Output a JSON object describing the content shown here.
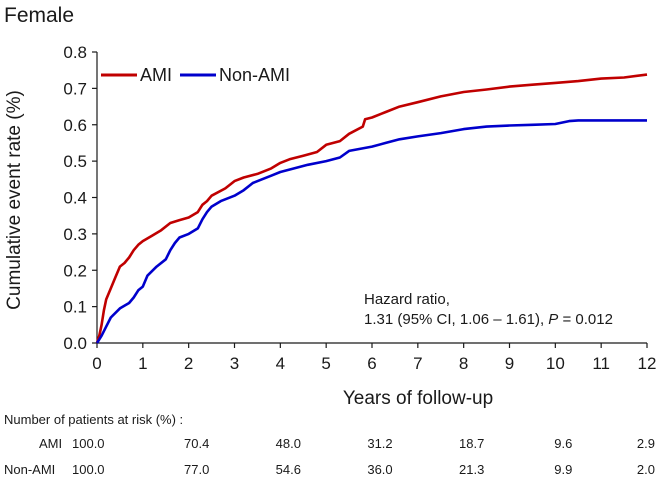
{
  "chart_data": {
    "type": "line",
    "title": "Female",
    "xlabel": "Years of follow-up",
    "ylabel": "Cumulative event rate (%)",
    "xlim": [
      0,
      12
    ],
    "ylim": [
      0,
      0.8
    ],
    "x_ticks": [
      0,
      1,
      2,
      3,
      4,
      5,
      6,
      7,
      8,
      9,
      10,
      11,
      12
    ],
    "y_ticks": [
      0.0,
      0.1,
      0.2,
      0.3,
      0.4,
      0.5,
      0.6,
      0.7,
      0.8
    ],
    "y_tick_labels": [
      "0.0",
      "0.1",
      "0.2",
      "0.3",
      "0.4",
      "0.5",
      "0.6",
      "0.7",
      "0.8"
    ],
    "legend_position": "top-left",
    "series": [
      {
        "name": "AMI",
        "color": "#c00000",
        "points": [
          [
            0,
            0
          ],
          [
            0.05,
            0.02
          ],
          [
            0.1,
            0.05
          ],
          [
            0.15,
            0.09
          ],
          [
            0.2,
            0.12
          ],
          [
            0.3,
            0.15
          ],
          [
            0.4,
            0.18
          ],
          [
            0.5,
            0.21
          ],
          [
            0.6,
            0.22
          ],
          [
            0.7,
            0.235
          ],
          [
            0.8,
            0.255
          ],
          [
            0.9,
            0.27
          ],
          [
            1.0,
            0.28
          ],
          [
            1.2,
            0.295
          ],
          [
            1.4,
            0.31
          ],
          [
            1.6,
            0.33
          ],
          [
            1.8,
            0.338
          ],
          [
            2.0,
            0.345
          ],
          [
            2.2,
            0.36
          ],
          [
            2.3,
            0.38
          ],
          [
            2.4,
            0.39
          ],
          [
            2.5,
            0.405
          ],
          [
            2.8,
            0.425
          ],
          [
            3.0,
            0.445
          ],
          [
            3.2,
            0.455
          ],
          [
            3.5,
            0.465
          ],
          [
            3.8,
            0.48
          ],
          [
            4.0,
            0.495
          ],
          [
            4.2,
            0.505
          ],
          [
            4.5,
            0.515
          ],
          [
            4.8,
            0.525
          ],
          [
            5.0,
            0.545
          ],
          [
            5.3,
            0.555
          ],
          [
            5.5,
            0.575
          ],
          [
            5.8,
            0.595
          ],
          [
            5.85,
            0.615
          ],
          [
            6.0,
            0.62
          ],
          [
            6.3,
            0.635
          ],
          [
            6.6,
            0.65
          ],
          [
            7.0,
            0.662
          ],
          [
            7.5,
            0.678
          ],
          [
            8.0,
            0.69
          ],
          [
            8.5,
            0.697
          ],
          [
            9.0,
            0.705
          ],
          [
            9.5,
            0.71
          ],
          [
            10.0,
            0.715
          ],
          [
            10.5,
            0.72
          ],
          [
            11.0,
            0.727
          ],
          [
            11.5,
            0.73
          ],
          [
            12.0,
            0.738
          ]
        ]
      },
      {
        "name": "Non-AMI",
        "color": "#0000cc",
        "points": [
          [
            0,
            0
          ],
          [
            0.1,
            0.02
          ],
          [
            0.2,
            0.045
          ],
          [
            0.3,
            0.07
          ],
          [
            0.5,
            0.095
          ],
          [
            0.7,
            0.11
          ],
          [
            0.8,
            0.125
          ],
          [
            0.9,
            0.145
          ],
          [
            1.0,
            0.155
          ],
          [
            1.1,
            0.185
          ],
          [
            1.3,
            0.21
          ],
          [
            1.5,
            0.23
          ],
          [
            1.6,
            0.255
          ],
          [
            1.7,
            0.275
          ],
          [
            1.8,
            0.29
          ],
          [
            2.0,
            0.3
          ],
          [
            2.2,
            0.315
          ],
          [
            2.3,
            0.34
          ],
          [
            2.4,
            0.36
          ],
          [
            2.5,
            0.375
          ],
          [
            2.7,
            0.39
          ],
          [
            3.0,
            0.405
          ],
          [
            3.2,
            0.42
          ],
          [
            3.4,
            0.44
          ],
          [
            3.6,
            0.45
          ],
          [
            3.8,
            0.46
          ],
          [
            4.0,
            0.47
          ],
          [
            4.3,
            0.48
          ],
          [
            4.6,
            0.49
          ],
          [
            5.0,
            0.5
          ],
          [
            5.3,
            0.51
          ],
          [
            5.5,
            0.528
          ],
          [
            6.0,
            0.54
          ],
          [
            6.3,
            0.55
          ],
          [
            6.6,
            0.56
          ],
          [
            7.0,
            0.568
          ],
          [
            7.5,
            0.577
          ],
          [
            8.0,
            0.588
          ],
          [
            8.5,
            0.595
          ],
          [
            9.0,
            0.598
          ],
          [
            9.5,
            0.6
          ],
          [
            10.0,
            0.602
          ],
          [
            10.3,
            0.61
          ],
          [
            10.5,
            0.612
          ],
          [
            11.0,
            0.612
          ],
          [
            12.0,
            0.612
          ]
        ]
      }
    ],
    "annotation": {
      "line1": "Hazard ratio,",
      "line2_prefix": "1.31 (95% CI, 1.06 – 1.61),",
      "p_label": "P",
      "p_value": "= 0.012"
    },
    "risk_table": {
      "title": "Number of patients at risk (%) :",
      "x_positions": [
        0,
        2,
        4,
        6,
        8,
        10,
        12
      ],
      "rows": [
        {
          "label": "AMI",
          "values": [
            "100.0",
            "70.4",
            "48.0",
            "31.2",
            "18.7",
            "9.6",
            "2.9"
          ]
        },
        {
          "label": "Non-AMI",
          "values": [
            "100.0",
            "77.0",
            "54.6",
            "36.0",
            "21.3",
            "9.9",
            "2.0"
          ]
        }
      ]
    }
  }
}
